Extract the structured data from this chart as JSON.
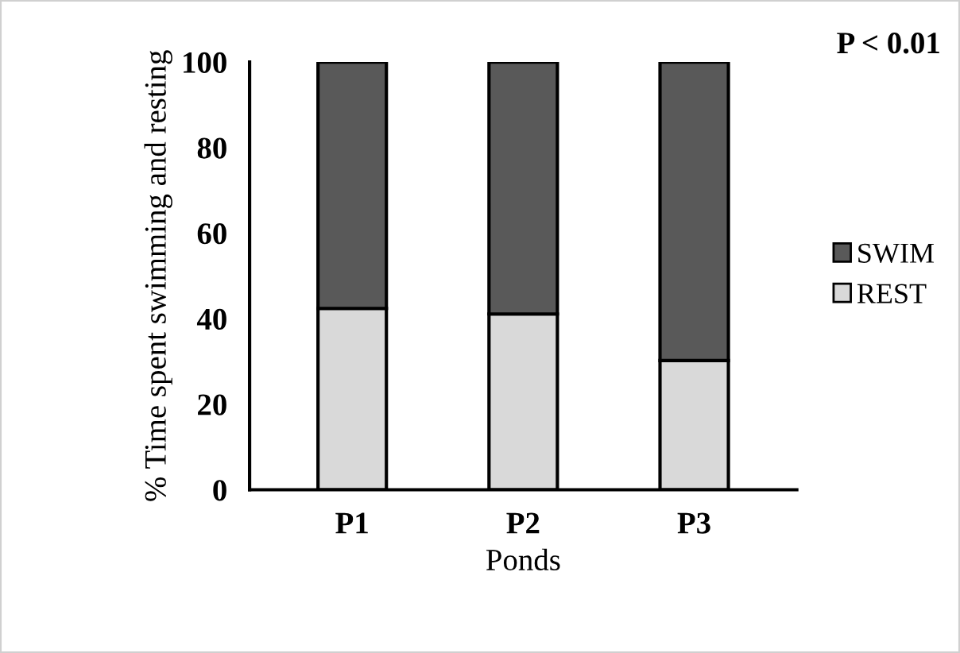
{
  "chart_data": {
    "type": "bar",
    "stacked": true,
    "categories": [
      "P1",
      "P2",
      "P3"
    ],
    "series": [
      {
        "name": "REST",
        "color": "#d9d9d9",
        "values": [
          42.4,
          41.1,
          30.2
        ]
      },
      {
        "name": "SWIM",
        "color": "#595959",
        "values": [
          57.6,
          58.9,
          69.8
        ]
      }
    ],
    "xlabel": "Ponds",
    "ylabel": "% Time spent swimming and resting",
    "ylim": [
      0,
      100
    ],
    "yticks": [
      0,
      20,
      40,
      60,
      80,
      100
    ],
    "annotations": [
      "P < 0.01"
    ],
    "legend": "right",
    "grid": false
  }
}
